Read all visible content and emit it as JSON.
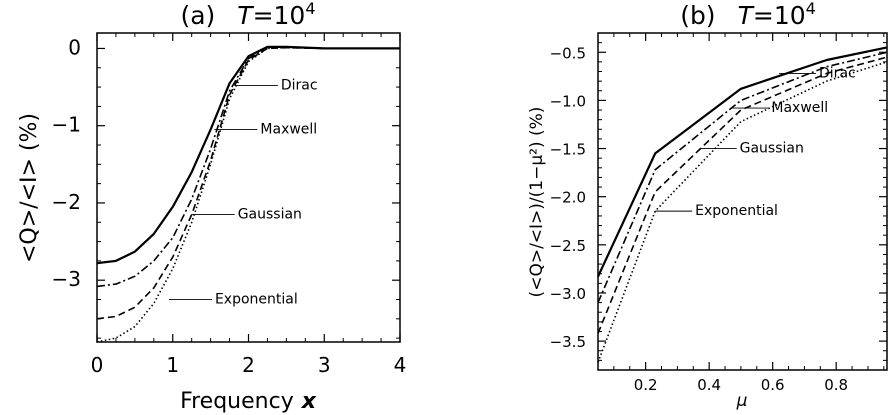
{
  "chart_data": [
    {
      "id": "a",
      "type": "line",
      "panel_label": "(a)",
      "title": "T = 10^4",
      "title_text": "T",
      "title_eq": "=",
      "title_base": "10",
      "title_exp": "4",
      "xlabel": "Frequency",
      "xlabel_var": "x",
      "ylabel": "<Q>/<I> (%)",
      "xlim": [
        0,
        4
      ],
      "ylim": [
        -3.8,
        0.2
      ],
      "xticks": [
        0,
        1,
        2,
        3,
        4
      ],
      "xtick_labels": [
        "0",
        "1",
        "2",
        "3",
        "4"
      ],
      "yticks": [
        0,
        -1,
        -2,
        -3
      ],
      "ytick_labels": [
        "0",
        "−1",
        "−2",
        "−3"
      ],
      "series": [
        {
          "name": "Dirac",
          "style": "solid",
          "x": [
            0,
            0.25,
            0.5,
            0.75,
            1.0,
            1.25,
            1.5,
            1.75,
            2.0,
            2.25,
            2.5,
            3.0,
            4.0
          ],
          "y": [
            -2.78,
            -2.75,
            -2.63,
            -2.4,
            -2.05,
            -1.6,
            -1.05,
            -0.45,
            -0.1,
            0.02,
            0.02,
            0.0,
            0.0
          ]
        },
        {
          "name": "Maxwell",
          "style": "dashdot",
          "x": [
            0,
            0.25,
            0.5,
            0.75,
            1.0,
            1.25,
            1.5,
            1.75,
            2.0,
            2.25,
            2.5,
            3.0,
            4.0
          ],
          "y": [
            -3.08,
            -3.05,
            -2.95,
            -2.75,
            -2.45,
            -1.95,
            -1.3,
            -0.55,
            -0.13,
            0.01,
            0.02,
            0.0,
            0.0
          ]
        },
        {
          "name": "Gaussian",
          "style": "dashed",
          "x": [
            0,
            0.25,
            0.5,
            0.75,
            1.0,
            1.25,
            1.5,
            1.75,
            2.0,
            2.25,
            2.5,
            3.0,
            4.0
          ],
          "y": [
            -3.5,
            -3.47,
            -3.35,
            -3.1,
            -2.7,
            -2.15,
            -1.45,
            -0.6,
            -0.15,
            0.0,
            0.01,
            0.0,
            0.0
          ]
        },
        {
          "name": "Exponential",
          "style": "dotted",
          "x": [
            0,
            0.25,
            0.5,
            0.75,
            1.0,
            1.25,
            1.5,
            1.75,
            2.0,
            2.25,
            2.5,
            3.0,
            4.0
          ],
          "y": [
            -3.8,
            -3.75,
            -3.6,
            -3.3,
            -2.85,
            -2.25,
            -1.5,
            -0.65,
            -0.17,
            0.0,
            0.01,
            0.0,
            0.0
          ]
        }
      ],
      "annotations": [
        {
          "text": "Dirac",
          "series": "Dirac",
          "x_data": 1.82,
          "y_data": -0.48
        },
        {
          "text": "Maxwell",
          "series": "Maxwell",
          "x_data": 1.55,
          "y_data": -1.05
        },
        {
          "text": "Gaussian",
          "series": "Gaussian",
          "x_data": 1.25,
          "y_data": -2.15
        },
        {
          "text": "Exponential",
          "series": "Exponential",
          "x_data": 0.95,
          "y_data": -3.25
        }
      ],
      "legend": "none",
      "grid": false
    },
    {
      "id": "b",
      "type": "line",
      "panel_label": "(b)",
      "title": "T = 10^4",
      "title_text": "T",
      "title_eq": "=",
      "title_base": "10",
      "title_exp": "4",
      "xlabel": "μ",
      "ylabel": "(<Q>/<I>)/(1−μ²) (%)",
      "xlim": [
        0.05,
        0.96
      ],
      "ylim": [
        -3.8,
        -0.3
      ],
      "xticks": [
        0.2,
        0.4,
        0.6,
        0.8
      ],
      "xtick_labels": [
        "0.2",
        "0.4",
        "0.6",
        "0.8"
      ],
      "yticks": [
        -0.5,
        -1.0,
        -1.5,
        -2.0,
        -2.5,
        -3.0,
        -3.5
      ],
      "ytick_labels": [
        "−0.5",
        "−1.0",
        "−1.5",
        "−2.0",
        "−2.5",
        "−3.0",
        "−3.5"
      ],
      "series": [
        {
          "name": "Dirac",
          "style": "solid",
          "x": [
            0.05,
            0.23,
            0.5,
            0.77,
            0.96
          ],
          "y": [
            -2.83,
            -1.55,
            -0.88,
            -0.58,
            -0.45
          ]
        },
        {
          "name": "Maxwell",
          "style": "dashdot",
          "x": [
            0.05,
            0.23,
            0.5,
            0.77,
            0.96
          ],
          "y": [
            -3.1,
            -1.72,
            -1.0,
            -0.65,
            -0.5
          ]
        },
        {
          "name": "Gaussian",
          "style": "dashed",
          "x": [
            0.05,
            0.23,
            0.5,
            0.77,
            0.96
          ],
          "y": [
            -3.42,
            -1.95,
            -1.1,
            -0.72,
            -0.55
          ]
        },
        {
          "name": "Exponential",
          "style": "dotted",
          "x": [
            0.05,
            0.23,
            0.5,
            0.77,
            0.96
          ],
          "y": [
            -3.72,
            -2.15,
            -1.22,
            -0.8,
            -0.6
          ]
        }
      ],
      "annotations": [
        {
          "text": "Dirac",
          "series": "Dirac",
          "x_data": 0.62,
          "y_data": -0.72
        },
        {
          "text": "Maxwell",
          "series": "Maxwell",
          "x_data": 0.47,
          "y_data": -1.08
        },
        {
          "text": "Gaussian",
          "series": "Gaussian",
          "x_data": 0.37,
          "y_data": -1.5
        },
        {
          "text": "Exponential",
          "series": "Exponential",
          "x_data": 0.23,
          "y_data": -2.15
        }
      ],
      "legend": "none",
      "grid": false
    }
  ]
}
